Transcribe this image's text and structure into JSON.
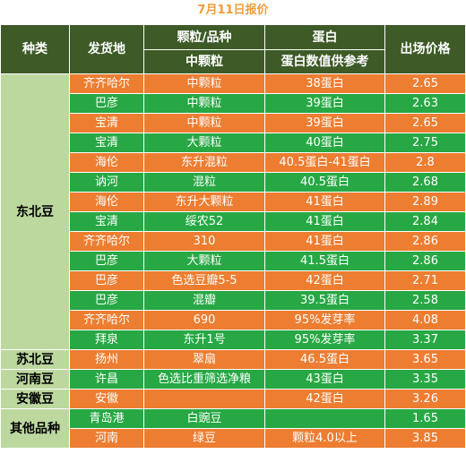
{
  "title": "7月11日报价",
  "headers": {
    "category": "种类",
    "origin": "发货地",
    "grain_top": "颗粒/品种",
    "grain_sub": "中颗粒",
    "protein_top": "蛋白",
    "protein_sub": "蛋白数值供参考",
    "price": "出场价格"
  },
  "categories": {
    "dongbei": "东北豆",
    "subei": "苏北豆",
    "henan": "河南豆",
    "anhui": "安徽豆",
    "other": "其他品种"
  },
  "rows": [
    {
      "origin": "齐齐哈尔",
      "grain": "中颗粒",
      "protein": "38蛋白",
      "price": "2.65"
    },
    {
      "origin": "巴彦",
      "grain": "中颗粒",
      "protein": "39蛋白",
      "price": "2.63"
    },
    {
      "origin": "宝清",
      "grain": "中颗粒",
      "protein": "39蛋白",
      "price": "2.65"
    },
    {
      "origin": "宝清",
      "grain": "大颗粒",
      "protein": "40蛋白",
      "price": "2.75"
    },
    {
      "origin": "海伦",
      "grain": "东升混粒",
      "protein": "40.5蛋白-41蛋白",
      "price": "2.8"
    },
    {
      "origin": "讷河",
      "grain": "混粒",
      "protein": "40.5蛋白",
      "price": "2.68"
    },
    {
      "origin": "海伦",
      "grain": "东升大颗粒",
      "protein": "41蛋白",
      "price": "2.89"
    },
    {
      "origin": "宝清",
      "grain": "绥农52",
      "protein": "41蛋白",
      "price": "2.84"
    },
    {
      "origin": "齐齐哈尔",
      "grain": "310",
      "protein": "41蛋白",
      "price": "2.86"
    },
    {
      "origin": "巴彦",
      "grain": "大颗粒",
      "protein": "41.5蛋白",
      "price": "2.86"
    },
    {
      "origin": "巴彦",
      "grain": "色选豆瓣5-5",
      "protein": "42蛋白",
      "price": "2.71"
    },
    {
      "origin": "巴彦",
      "grain": "混瓣",
      "protein": "39.5蛋白",
      "price": "2.58"
    },
    {
      "origin": "齐齐哈尔",
      "grain": "690",
      "protein": "95%发芽率",
      "price": "4.08"
    },
    {
      "origin": "拜泉",
      "grain": "东升1号",
      "protein": "95%发芽率",
      "price": "3.37"
    },
    {
      "origin": "扬州",
      "grain": "翠扇",
      "protein": "46.5蛋白",
      "price": "3.65"
    },
    {
      "origin": "许昌",
      "grain": "色选比重筛选净粮",
      "protein": "43蛋白",
      "price": "3.35"
    },
    {
      "origin": "安徽",
      "grain": "",
      "protein": "42蛋白",
      "price": "3.26"
    },
    {
      "origin": "青岛港",
      "grain": "白豌豆",
      "protein": "",
      "price": "1.65"
    },
    {
      "origin": "河南",
      "grain": "绿豆",
      "protein": "颗粒4.0以上",
      "price": "3.85"
    }
  ],
  "colors": {
    "header_bg": "#3d5a27",
    "category_bg": "#bcd89f",
    "row_orange": "#ed7d31",
    "row_green": "#27a844",
    "title_color": "#f29b3a"
  }
}
